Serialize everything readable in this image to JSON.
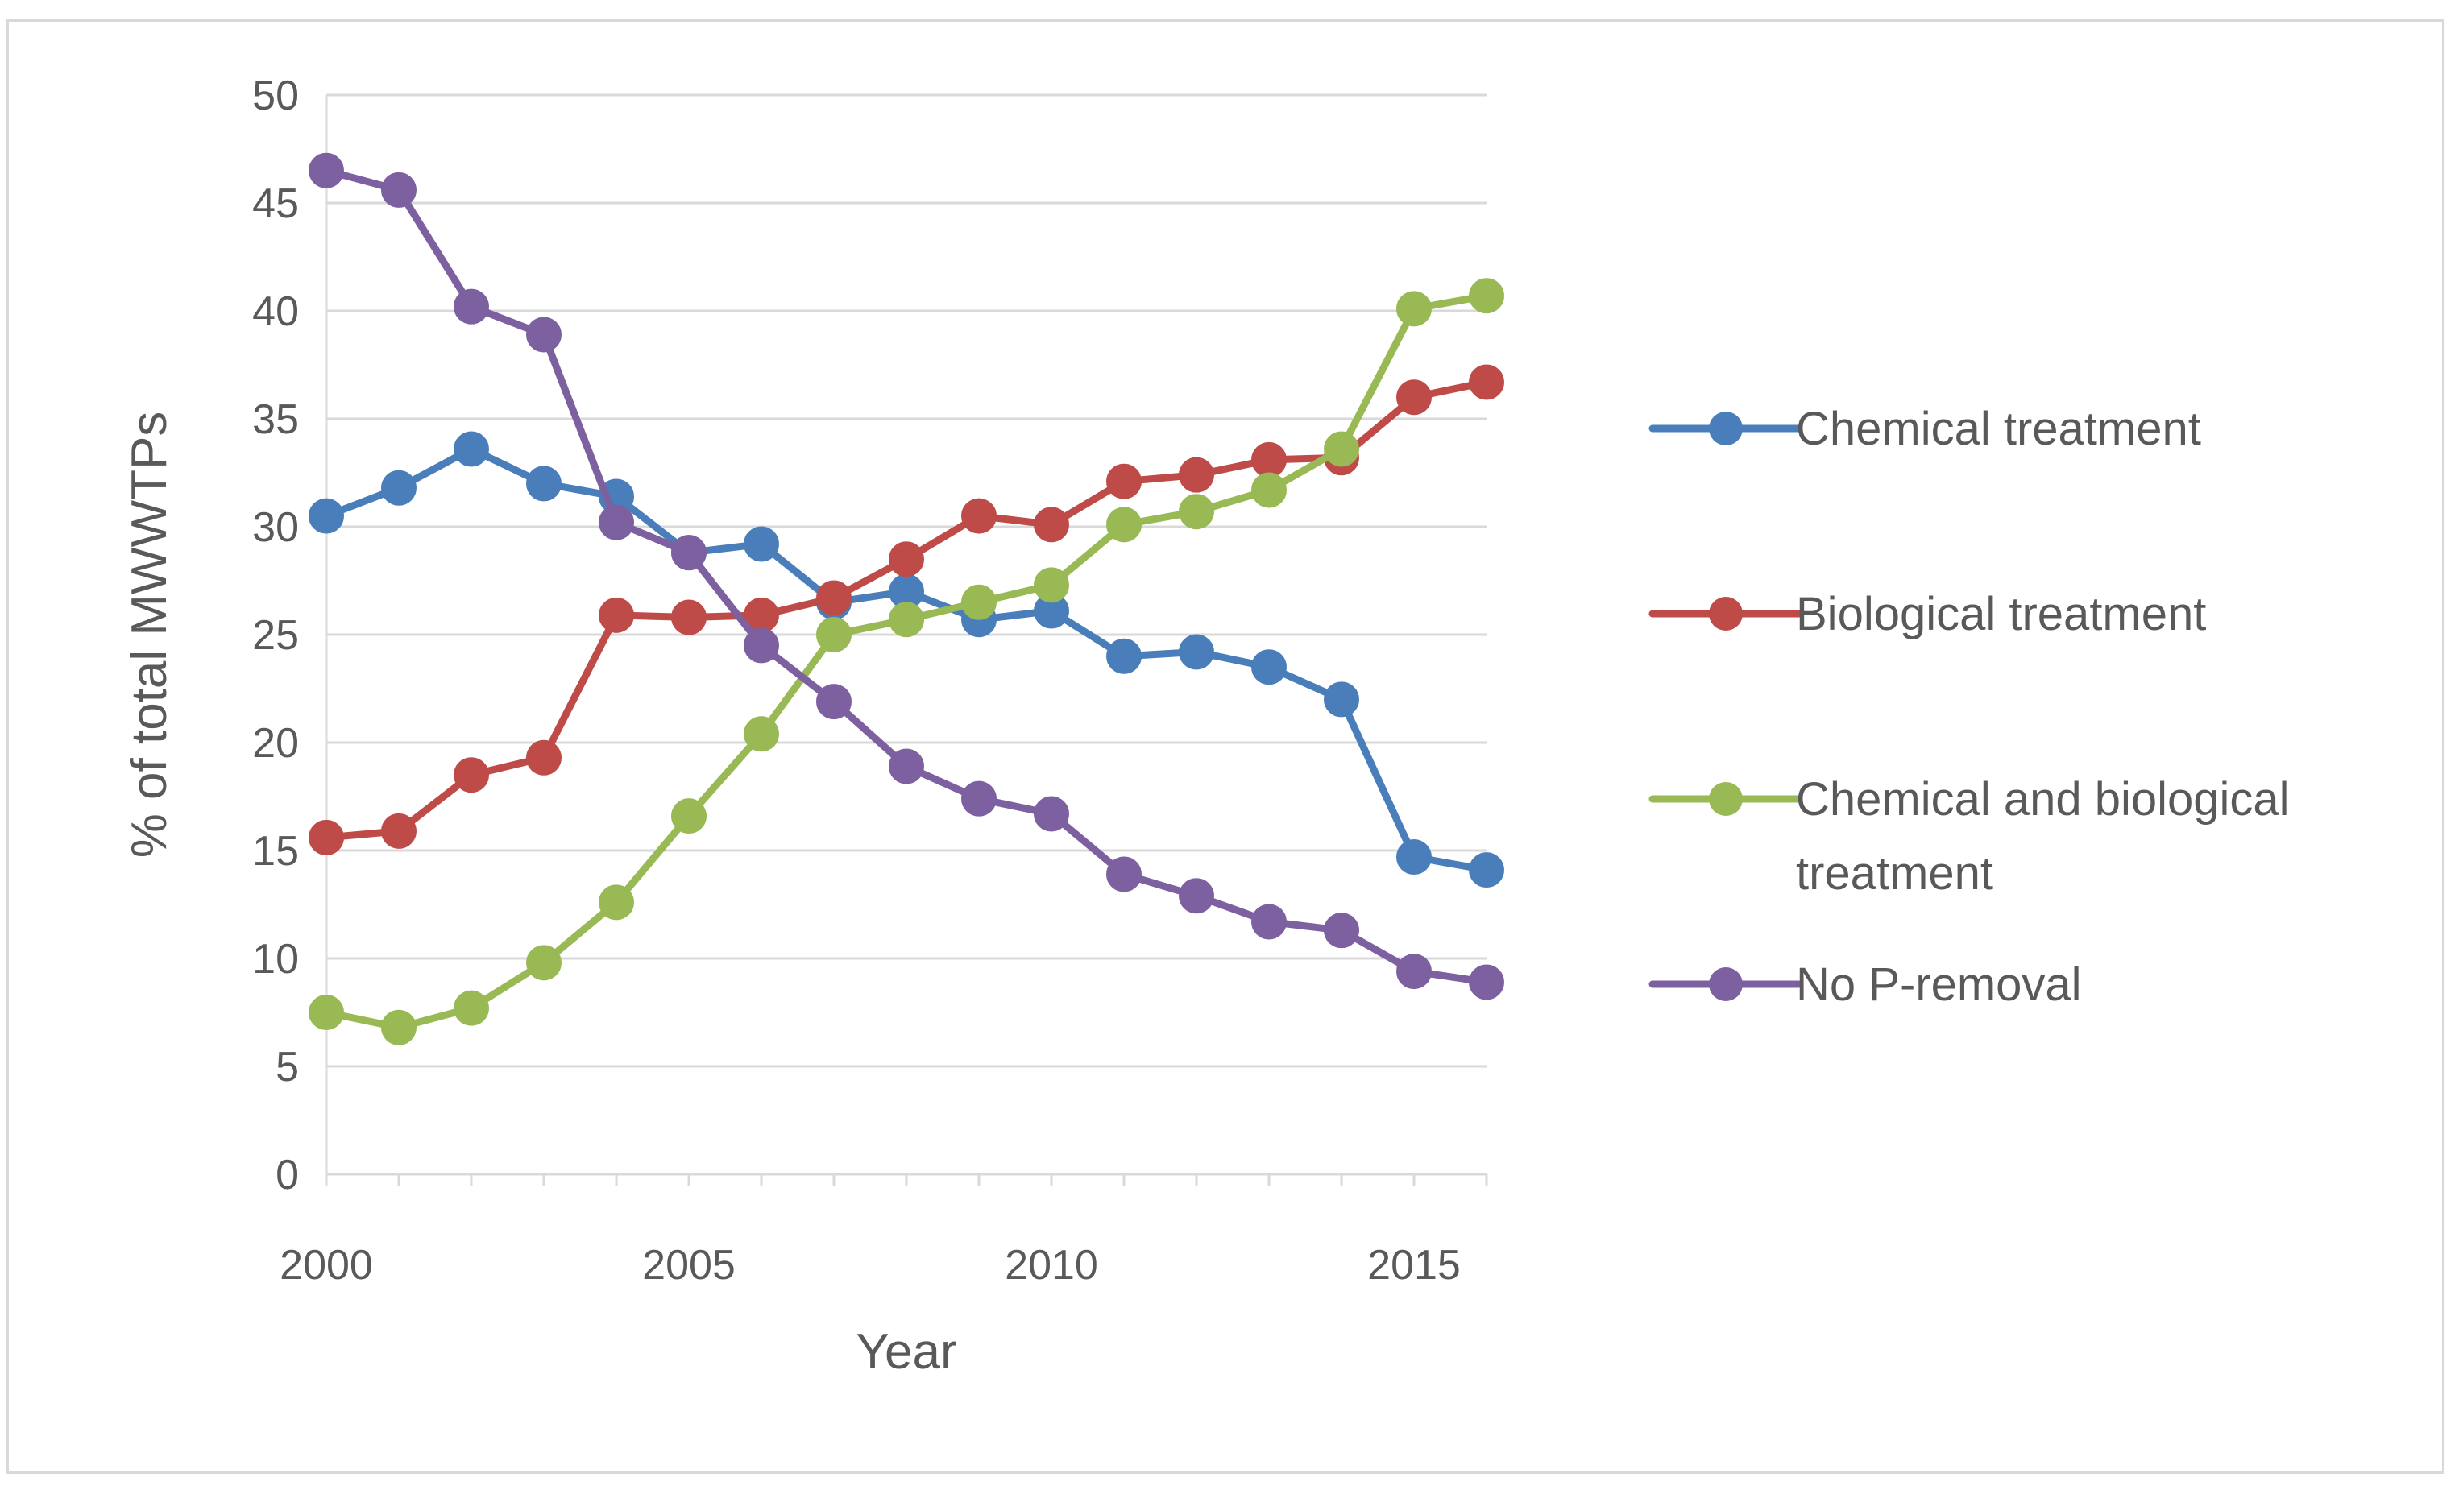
{
  "chart_data": {
    "type": "line",
    "title": "",
    "xlabel": "Year",
    "ylabel": "% of total MWWTPs",
    "x": [
      2000,
      2001,
      2002,
      2003,
      2004,
      2005,
      2006,
      2007,
      2008,
      2009,
      2010,
      2011,
      2012,
      2013,
      2014,
      2015,
      2016
    ],
    "x_ticks": [
      "2000",
      "2005",
      "2010",
      "2015"
    ],
    "x_tick_values": [
      2000,
      2005,
      2010,
      2015
    ],
    "xlim": [
      2000,
      2016
    ],
    "y_ticks": [
      "0",
      "5",
      "10",
      "15",
      "20",
      "25",
      "30",
      "35",
      "40",
      "45",
      "50"
    ],
    "ylim": [
      0,
      50
    ],
    "grid": true,
    "legend_position": "right",
    "series": [
      {
        "name": "Chemical treatment",
        "legend_lines": [
          "Chemical treatment"
        ],
        "color": "#4a7ebb",
        "values": [
          30.5,
          31.8,
          33.6,
          32.0,
          31.4,
          28.8,
          29.2,
          26.5,
          27.0,
          25.7,
          26.1,
          24.0,
          24.2,
          23.5,
          22.0,
          14.7,
          14.1
        ]
      },
      {
        "name": "Biological treatment",
        "legend_lines": [
          "Biological treatment"
        ],
        "color": "#be4b48",
        "values": [
          15.6,
          15.9,
          18.5,
          19.3,
          25.9,
          25.8,
          25.9,
          26.7,
          28.5,
          30.5,
          30.1,
          32.1,
          32.4,
          33.1,
          33.2,
          36.0,
          36.7
        ]
      },
      {
        "name": "Chemical and biological treatment",
        "legend_lines": [
          "Chemical and biological",
          "treatment"
        ],
        "color": "#98b954",
        "values": [
          7.5,
          6.8,
          7.7,
          9.8,
          12.6,
          16.6,
          20.4,
          25.0,
          25.7,
          26.5,
          27.3,
          30.1,
          30.7,
          31.7,
          33.6,
          40.1,
          40.7
        ]
      },
      {
        "name": "No P-removal",
        "legend_lines": [
          "No P-removal"
        ],
        "color": "#7d60a0",
        "values": [
          46.5,
          45.6,
          40.2,
          38.9,
          30.2,
          28.8,
          24.5,
          21.9,
          18.9,
          17.4,
          16.7,
          13.9,
          12.9,
          11.7,
          11.3,
          9.4,
          8.9
        ]
      }
    ]
  }
}
